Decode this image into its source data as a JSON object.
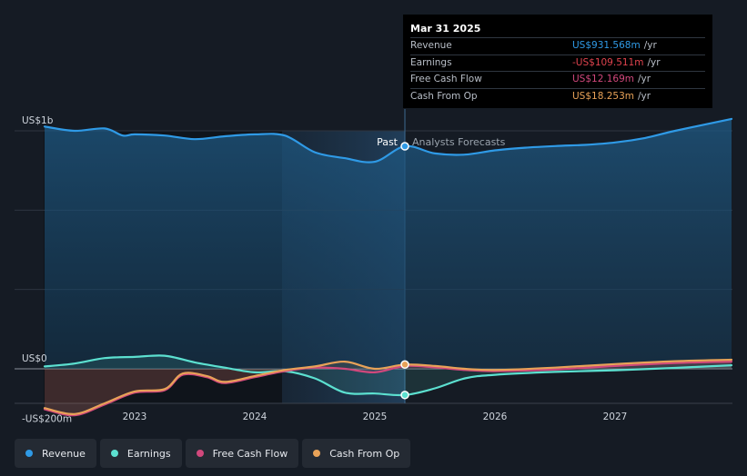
{
  "chart_data": {
    "type": "area",
    "y_labels": [
      {
        "text": "US$1b",
        "value": 1000
      },
      {
        "text": "US$0",
        "value": 0
      },
      {
        "text": "-US$200m",
        "value": -200
      }
    ],
    "x_ticks": [
      "2023",
      "2024",
      "2025",
      "2026",
      "2027"
    ],
    "past_label": "Past",
    "forecast_label": "Analysts Forecasts",
    "divider_date": 2025.25,
    "ylim": [
      -280,
      1000
    ],
    "xlim": [
      2022.2,
      2027.97
    ],
    "series": [
      {
        "name": "Revenue",
        "color": "#2f9ae6",
        "fill": true,
        "x": [
          2022.25,
          2022.5,
          2022.75,
          2022.9,
          2023.0,
          2023.25,
          2023.5,
          2023.75,
          2024.0,
          2024.25,
          2024.5,
          2024.75,
          2025.0,
          2025.25,
          2025.5,
          2025.75,
          2026.0,
          2026.25,
          2026.5,
          2026.75,
          2027.0,
          2027.25,
          2027.5,
          2027.97
        ],
        "y": [
          1018,
          1000,
          1010,
          980,
          985,
          980,
          965,
          977,
          985,
          980,
          910,
          885,
          870,
          935,
          905,
          900,
          918,
          929,
          936,
          941,
          951,
          970,
          1000,
          1050
        ]
      },
      {
        "name": "Earnings",
        "color": "#5ce0d0",
        "x": [
          2022.25,
          2022.5,
          2022.75,
          2023.0,
          2023.25,
          2023.5,
          2023.75,
          2024.0,
          2024.25,
          2024.5,
          2024.75,
          2025.0,
          2025.25,
          2025.5,
          2025.75,
          2026.0,
          2026.5,
          2027.0,
          2027.5,
          2027.97
        ],
        "y": [
          10,
          22,
          45,
          50,
          55,
          27,
          5,
          -15,
          -10,
          -40,
          -100,
          -104,
          -110,
          -82,
          -40,
          -25,
          -13,
          -6,
          4,
          15
        ]
      },
      {
        "name": "Free Cash Flow",
        "color": "#d1487c",
        "x": [
          2022.25,
          2022.5,
          2022.75,
          2023.0,
          2023.25,
          2023.4,
          2023.6,
          2023.75,
          2024.0,
          2024.25,
          2024.5,
          2024.75,
          2025.0,
          2025.25,
          2025.5,
          2025.75,
          2026.0,
          2026.5,
          2027.0,
          2027.5,
          2027.97
        ],
        "y": [
          -170,
          -195,
          -150,
          -100,
          -90,
          -25,
          -35,
          -60,
          -35,
          -10,
          5,
          0,
          -15,
          12,
          6,
          -5,
          -10,
          -3,
          12,
          24,
          30
        ]
      },
      {
        "name": "Cash From Op",
        "color": "#e8a258",
        "x": [
          2022.25,
          2022.5,
          2022.75,
          2023.0,
          2023.25,
          2023.4,
          2023.6,
          2023.75,
          2024.0,
          2024.25,
          2024.5,
          2024.75,
          2025.0,
          2025.25,
          2025.5,
          2025.75,
          2026.0,
          2026.5,
          2027.0,
          2027.5,
          2027.97
        ],
        "y": [
          -165,
          -190,
          -145,
          -95,
          -85,
          -20,
          -30,
          -55,
          -30,
          -5,
          10,
          30,
          0,
          18,
          12,
          0,
          -5,
          5,
          20,
          32,
          38
        ]
      }
    ]
  },
  "tooltip": {
    "date": "Mar 31 2025",
    "rows": [
      {
        "label": "Revenue",
        "value": "US$931.568m",
        "unit": "/yr",
        "color": "#2f9ae6"
      },
      {
        "label": "Earnings",
        "value": "-US$109.511m",
        "unit": "/yr",
        "color": "#e0434e"
      },
      {
        "label": "Free Cash Flow",
        "value": "US$12.169m",
        "unit": "/yr",
        "color": "#d1487c"
      },
      {
        "label": "Cash From Op",
        "value": "US$18.253m",
        "unit": "/yr",
        "color": "#e8a258"
      }
    ]
  },
  "legend": [
    {
      "label": "Revenue",
      "color": "#2f9ae6"
    },
    {
      "label": "Earnings",
      "color": "#5ce0d0"
    },
    {
      "label": "Free Cash Flow",
      "color": "#d1487c"
    },
    {
      "label": "Cash From Op",
      "color": "#e8a258"
    }
  ]
}
